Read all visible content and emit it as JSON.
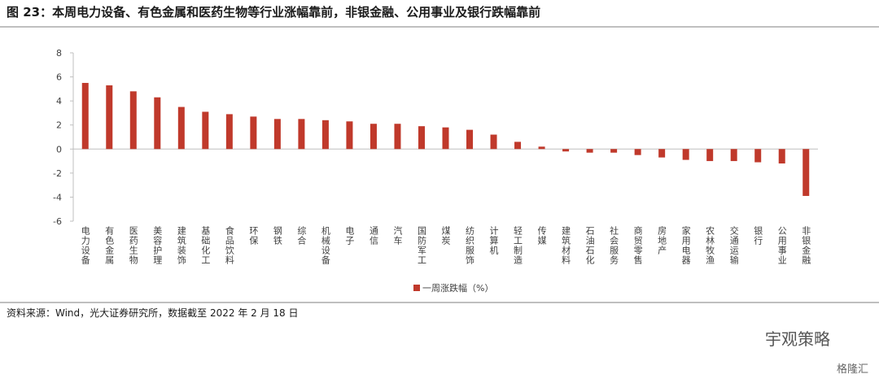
{
  "chart_data": {
    "type": "bar",
    "title": "图 23：本周电力设备、有色金属和医药生物等行业涨幅靠前，非银金融、公用事业及银行跌幅靠前",
    "categories": [
      "电力设备",
      "有色金属",
      "医药生物",
      "美容护理",
      "建筑装饰",
      "基础化工",
      "食品饮料",
      "环保",
      "钢铁",
      "综合",
      "机械设备",
      "电子",
      "通信",
      "汽车",
      "国防军工",
      "煤炭",
      "纺织服饰",
      "计算机",
      "轻工制造",
      "传媒",
      "建筑材料",
      "石油石化",
      "社会服务",
      "商贸零售",
      "房地产",
      "家用电器",
      "农林牧渔",
      "交通运输",
      "银行",
      "公用事业",
      "非银金融"
    ],
    "series": [
      {
        "name": "一周涨跌幅（%）",
        "color": "#c0392b",
        "values": [
          5.5,
          5.3,
          4.8,
          4.3,
          3.5,
          3.1,
          2.9,
          2.7,
          2.5,
          2.5,
          2.4,
          2.3,
          2.1,
          2.1,
          1.9,
          1.8,
          1.6,
          1.2,
          0.6,
          0.2,
          -0.2,
          -0.3,
          -0.3,
          -0.5,
          -0.7,
          -0.9,
          -1.0,
          -1.0,
          -1.1,
          -1.2,
          -3.9
        ]
      }
    ],
    "ylim": [
      -6,
      8
    ],
    "yticks": [
      -6,
      -4,
      -2,
      0,
      2,
      4,
      6,
      8
    ],
    "source": "资料来源：Wind，光大证券研究所，数据截至 2022 年 2 月 18 日",
    "watermark": "宇观策略",
    "logo": "格隆汇"
  }
}
